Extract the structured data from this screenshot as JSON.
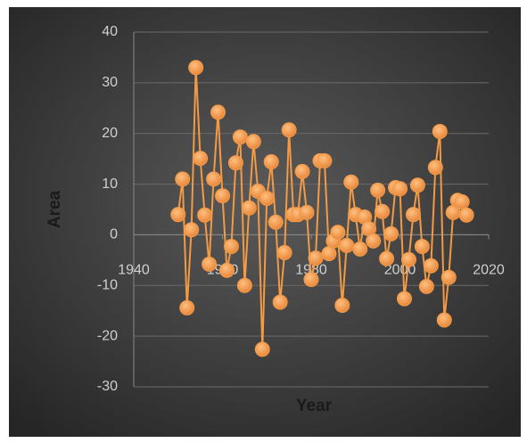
{
  "chart_data": {
    "type": "line",
    "xlabel": "Year",
    "ylabel": "Area",
    "x": [
      1950,
      1951,
      1952,
      1953,
      1954,
      1955,
      1956,
      1957,
      1958,
      1959,
      1960,
      1961,
      1962,
      1963,
      1964,
      1965,
      1966,
      1967,
      1968,
      1969,
      1970,
      1971,
      1972,
      1973,
      1974,
      1975,
      1976,
      1977,
      1978,
      1979,
      1980,
      1981,
      1982,
      1983,
      1984,
      1985,
      1986,
      1987,
      1988,
      1989,
      1990,
      1991,
      1992,
      1993,
      1994,
      1995,
      1996,
      1997,
      1998,
      1999,
      2000,
      2001,
      2002,
      2003,
      2004,
      2005,
      2006,
      2007,
      2008,
      2009,
      2010,
      2011,
      2012,
      2013,
      2014,
      2015
    ],
    "series": [
      {
        "name": "Area",
        "color": "#f39a45",
        "values": [
          4.0,
          11.0,
          -14.4,
          1.0,
          33.0,
          15.1,
          3.9,
          -5.8,
          11.0,
          24.2,
          7.7,
          -7.0,
          -2.3,
          14.2,
          19.3,
          -10.0,
          5.3,
          18.4,
          8.6,
          -22.6,
          7.2,
          14.4,
          2.5,
          -13.3,
          -3.5,
          20.7,
          4.0,
          4.0,
          12.5,
          4.4,
          -8.8,
          -4.6,
          14.6,
          14.6,
          -3.7,
          -1.2,
          0.5,
          -13.9,
          -2.1,
          10.4,
          4.0,
          -2.8,
          3.5,
          1.2,
          -1.2,
          8.8,
          4.6,
          -4.7,
          0.2,
          9.3,
          9.1,
          -12.6,
          -4.9,
          4.0,
          9.8,
          -2.3,
          -10.2,
          -6.1,
          13.3,
          20.4,
          -16.8,
          -8.4,
          4.4,
          6.8,
          6.5,
          3.9
        ]
      }
    ],
    "xlim": [
      1940,
      2020
    ],
    "xticks": [
      1940,
      1960,
      1980,
      2000,
      2020
    ],
    "ylim": [
      -30,
      40
    ],
    "yticks": [
      -30,
      -20,
      -10,
      0,
      10,
      20,
      30,
      40
    ],
    "grid": true
  }
}
